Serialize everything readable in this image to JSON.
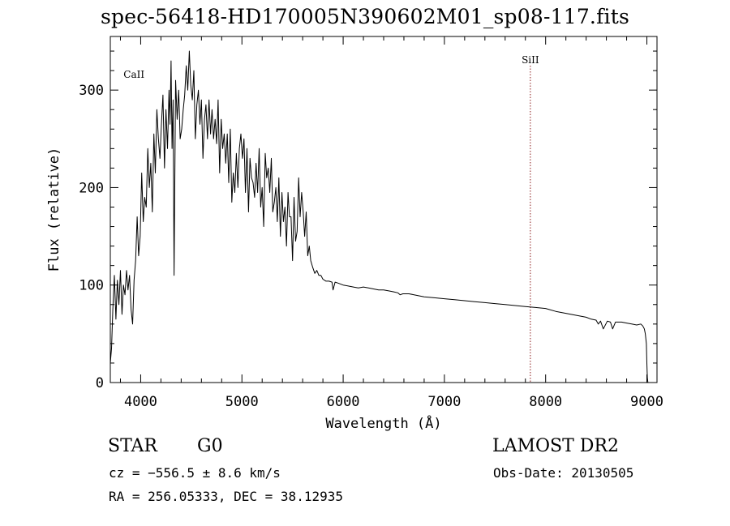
{
  "chart_data": {
    "type": "line",
    "title": "spec-56418-HD170005N390602M01_sp08-117.fits",
    "xlabel": "Wavelength (Å)",
    "ylabel": "Flux (relative)",
    "xlim": [
      3700,
      9100
    ],
    "ylim": [
      0,
      355
    ],
    "xticks": [
      4000,
      5000,
      6000,
      7000,
      8000,
      9000
    ],
    "yticks": [
      0,
      100,
      200,
      300
    ],
    "grid": false,
    "line_color": "#000000",
    "series": [
      {
        "x": [
          3700,
          3712,
          3725,
          3740,
          3755,
          3770,
          3785,
          3800,
          3815,
          3830,
          3845,
          3860,
          3875,
          3890,
          3905,
          3920,
          3935,
          3950,
          3965,
          3980,
          3995,
          4010,
          4025,
          4040,
          4055,
          4070,
          4085,
          4100,
          4115,
          4130,
          4145,
          4160,
          4175,
          4190,
          4205,
          4220,
          4235,
          4250,
          4265,
          4280,
          4290,
          4300,
          4310,
          4320,
          4330,
          4345,
          4360,
          4375,
          4390,
          4405,
          4420,
          4435,
          4450,
          4465,
          4480,
          4495,
          4510,
          4525,
          4540,
          4555,
          4570,
          4585,
          4600,
          4615,
          4630,
          4645,
          4660,
          4675,
          4690,
          4705,
          4720,
          4735,
          4750,
          4765,
          4780,
          4795,
          4810,
          4825,
          4840,
          4855,
          4870,
          4885,
          4900,
          4915,
          4930,
          4945,
          4960,
          4975,
          4990,
          5005,
          5020,
          5035,
          5050,
          5065,
          5080,
          5095,
          5110,
          5125,
          5140,
          5155,
          5170,
          5185,
          5200,
          5215,
          5230,
          5245,
          5260,
          5275,
          5290,
          5305,
          5320,
          5335,
          5350,
          5365,
          5380,
          5395,
          5410,
          5425,
          5440,
          5455,
          5470,
          5485,
          5500,
          5515,
          5530,
          5545,
          5560,
          5575,
          5590,
          5605,
          5620,
          5635,
          5650,
          5665,
          5680,
          5700,
          5720,
          5740,
          5760,
          5780,
          5800,
          5830,
          5860,
          5890,
          5900,
          5920,
          5950,
          6000,
          6050,
          6100,
          6150,
          6200,
          6250,
          6300,
          6350,
          6400,
          6450,
          6500,
          6540,
          6563,
          6590,
          6650,
          6700,
          6800,
          6900,
          7000,
          7100,
          7200,
          7300,
          7400,
          7500,
          7600,
          7700,
          7800,
          7900,
          8000,
          8100,
          8200,
          8300,
          8400,
          8450,
          8498,
          8520,
          8542,
          8570,
          8610,
          8640,
          8662,
          8690,
          8750,
          8800,
          8850,
          8900,
          8940,
          8960,
          8975,
          8985,
          8995,
          9000,
          9005,
          9010
        ],
        "values": [
          20,
          35,
          75,
          110,
          65,
          105,
          80,
          115,
          70,
          100,
          90,
          115,
          95,
          110,
          75,
          60,
          105,
          125,
          170,
          130,
          150,
          215,
          165,
          190,
          180,
          240,
          200,
          225,
          175,
          255,
          215,
          280,
          250,
          230,
          265,
          295,
          220,
          280,
          240,
          300,
          265,
          330,
          240,
          290,
          110,
          310,
          270,
          300,
          250,
          260,
          280,
          295,
          325,
          300,
          340,
          305,
          290,
          320,
          250,
          285,
          300,
          265,
          290,
          230,
          270,
          285,
          250,
          290,
          255,
          280,
          250,
          270,
          245,
          290,
          215,
          270,
          240,
          255,
          225,
          255,
          205,
          260,
          185,
          215,
          195,
          235,
          200,
          240,
          255,
          230,
          250,
          195,
          240,
          175,
          230,
          210,
          205,
          190,
          225,
          195,
          240,
          180,
          200,
          160,
          235,
          210,
          220,
          195,
          230,
          175,
          185,
          200,
          165,
          210,
          150,
          195,
          165,
          180,
          140,
          195,
          170,
          170,
          125,
          190,
          145,
          155,
          210,
          170,
          195,
          175,
          150,
          175,
          130,
          140,
          125,
          118,
          112,
          115,
          110,
          110,
          106,
          104,
          104,
          103,
          95,
          103,
          102,
          100,
          99,
          98,
          97,
          98,
          97,
          96,
          95,
          95,
          94,
          93,
          92,
          90,
          91,
          91,
          90,
          88,
          87,
          86,
          85,
          84,
          83,
          82,
          81,
          80,
          79,
          78,
          77,
          76,
          73,
          71,
          69,
          67,
          65,
          64,
          60,
          63,
          55,
          63,
          62,
          55,
          62,
          62,
          61,
          60,
          59,
          60,
          58,
          55,
          50,
          40,
          20,
          5,
          0
        ]
      }
    ],
    "annotations": [
      {
        "label": "CaII",
        "x": 3934,
        "line_color": null
      },
      {
        "label": "SiII",
        "x": 7849,
        "line_color": "#8b1a1a"
      }
    ]
  },
  "footer": {
    "object_class": "STAR",
    "subclass": "G0",
    "survey": "LAMOST DR2",
    "cz": "cz = −556.5 ± 8.6 km/s",
    "obs_date": "Obs-Date: 20130505",
    "radec": "RA = 256.05333, DEC =  38.12935"
  }
}
